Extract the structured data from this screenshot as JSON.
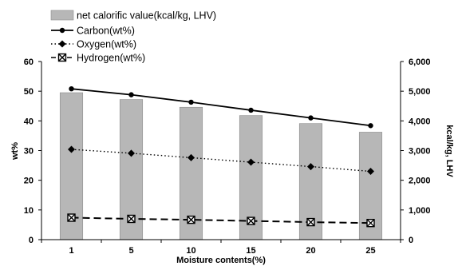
{
  "chart_data": {
    "type": "bar",
    "categories": [
      "1",
      "5",
      "10",
      "15",
      "20",
      "25"
    ],
    "xlabel": "Moisture contents(%)",
    "ylabel": "wt%",
    "y2label": "kcal/kg, LHV",
    "ylim": [
      0,
      60
    ],
    "y2lim": [
      0,
      6000
    ],
    "yticks": [
      "0",
      "10",
      "20",
      "30",
      "40",
      "50",
      "60"
    ],
    "y2ticks": [
      "0",
      "1,000",
      "2,000",
      "3,000",
      "4,000",
      "5,000",
      "6,000"
    ],
    "grid": false,
    "legend_position": "top-left",
    "series": [
      {
        "name": "net calorific value(kcal/kg, LHV)",
        "type": "bar",
        "axis": "right",
        "color": "#b7b7b7",
        "values": [
          4950,
          4720,
          4460,
          4180,
          3910,
          3620
        ]
      },
      {
        "name": "Carbon(wt%)",
        "type": "line",
        "axis": "left",
        "marker": "circle",
        "dash": "solid",
        "color": "#000000",
        "values": [
          50.8,
          48.8,
          46.3,
          43.6,
          41.0,
          38.4
        ]
      },
      {
        "name": "Oxygen(wt%)",
        "type": "line",
        "axis": "left",
        "marker": "diamond",
        "dash": "dotted",
        "color": "#000000",
        "values": [
          30.4,
          29.1,
          27.6,
          26.1,
          24.6,
          23.0
        ]
      },
      {
        "name": "Hydrogen(wt%)",
        "type": "line",
        "axis": "left",
        "marker": "boxed-x",
        "dash": "dashed",
        "color": "#000000",
        "values": [
          7.4,
          7.0,
          6.7,
          6.3,
          5.9,
          5.6
        ]
      }
    ]
  }
}
